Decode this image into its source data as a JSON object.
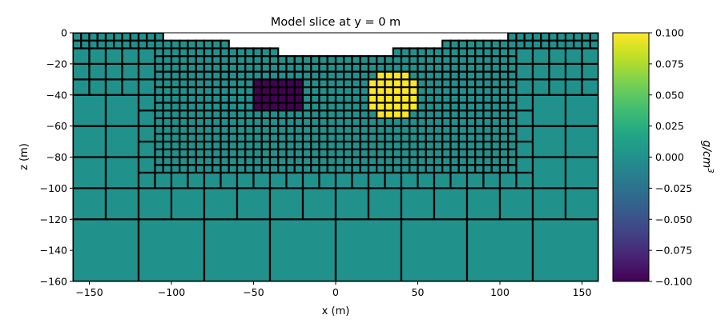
{
  "chart_data": {
    "type": "heatmap",
    "title": "Model slice at y = 0 m",
    "xlabel": "x (m)",
    "ylabel": "z (m)",
    "xlim": [
      -160,
      160
    ],
    "ylim": [
      -160,
      0
    ],
    "xticks": [
      -150,
      -100,
      -50,
      0,
      50,
      100,
      150
    ],
    "xtick_labels": [
      "−150",
      "−100",
      "−50",
      "0",
      "50",
      "100",
      "150"
    ],
    "yticks": [
      0,
      -20,
      -40,
      -60,
      -80,
      -100,
      -120,
      -140,
      -160
    ],
    "ytick_labels": [
      "0",
      "−20",
      "−40",
      "−60",
      "−80",
      "−100",
      "−120",
      "−140",
      "−160"
    ],
    "background_value": 0.0,
    "mesh": {
      "base_cell_size": 40,
      "refinement": [
        {
          "size": 5,
          "region": "box",
          "x": [
            -110,
            110
          ],
          "z": [
            -90,
            0
          ]
        },
        {
          "size": 5,
          "region": "above_z",
          "z": -10
        },
        {
          "size": 10,
          "region": "box",
          "x": [
            -120,
            120
          ],
          "z": [
            -100,
            0
          ]
        },
        {
          "size": 10,
          "region": "above_z",
          "z": -40
        },
        {
          "size": 20,
          "region": "above_z",
          "z": -120
        }
      ],
      "topography": [
        {
          "x": [
            -160,
            -105
          ],
          "z": 0
        },
        {
          "x": [
            -105,
            -65
          ],
          "z": -5
        },
        {
          "x": [
            -65,
            -35
          ],
          "z": -10
        },
        {
          "x": [
            -35,
            35
          ],
          "z": -15
        },
        {
          "x": [
            35,
            65
          ],
          "z": -10
        },
        {
          "x": [
            65,
            105
          ],
          "z": -5
        },
        {
          "x": [
            105,
            160
          ],
          "z": 0
        }
      ]
    },
    "anomalies": [
      {
        "shape": "block",
        "x": [
          -50,
          -20
        ],
        "z": [
          -50,
          -30
        ],
        "value": -0.1
      },
      {
        "shape": "sphere",
        "center": [
          35,
          -40
        ],
        "radius": 15,
        "value": 0.1
      }
    ],
    "colorbar": {
      "colormap": "viridis",
      "range": [
        -0.1,
        0.1
      ],
      "ticks": [
        0.1,
        0.075,
        0.05,
        0.025,
        0.0,
        -0.025,
        -0.05,
        -0.075,
        -0.1
      ],
      "tick_labels": [
        "0.100",
        "0.075",
        "0.050",
        "0.025",
        "0.000",
        "−0.025",
        "−0.050",
        "−0.075",
        "−0.100"
      ],
      "label": "g/cm",
      "label_superscript": "3"
    }
  }
}
